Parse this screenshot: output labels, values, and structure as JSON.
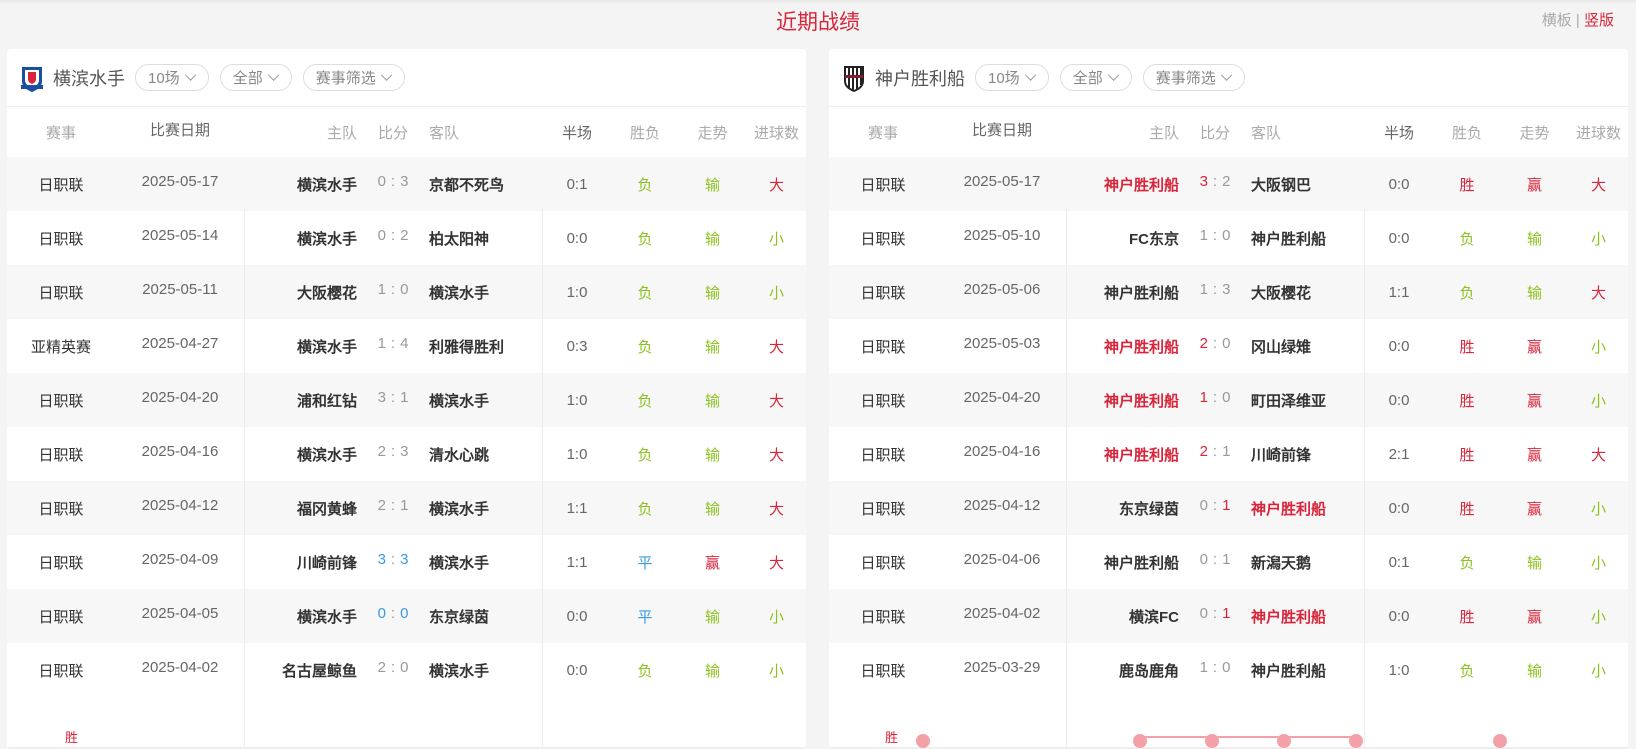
{
  "title": "近期战绩",
  "view_toggle": {
    "horizontal": "横板",
    "separator": "|",
    "vertical": "竖版"
  },
  "colors": {
    "accent": "#d9243a",
    "win": "#d9243a",
    "loss": "#8cc21f",
    "draw": "#3a9be0"
  },
  "columns": {
    "comp": "赛事",
    "date": "比赛日期",
    "home": "主队",
    "score": "比分",
    "away": "客队",
    "half": "半场",
    "res": "胜负",
    "trend": "走势",
    "ou": "进球数"
  },
  "panels": [
    {
      "team": "横滨水手",
      "logo": "yokohama-marinos-crest",
      "filters": [
        "10场",
        "全部",
        "赛事筛选"
      ],
      "chart_label": "胜",
      "rows": [
        {
          "comp": "日职联",
          "date": "2025-05-17",
          "home": "横滨水手",
          "hs": "0",
          "as": "3",
          "away": "京都不死鸟",
          "half": "0:1",
          "res": "负",
          "trend": "输",
          "ou": "大",
          "winner": "none"
        },
        {
          "comp": "日职联",
          "date": "2025-05-14",
          "home": "横滨水手",
          "hs": "0",
          "as": "2",
          "away": "柏太阳神",
          "half": "0:0",
          "res": "负",
          "trend": "输",
          "ou": "小",
          "winner": "none"
        },
        {
          "comp": "日职联",
          "date": "2025-05-11",
          "home": "大阪樱花",
          "hs": "1",
          "as": "0",
          "away": "横滨水手",
          "half": "1:0",
          "res": "负",
          "trend": "输",
          "ou": "小",
          "winner": "none"
        },
        {
          "comp": "亚精英赛",
          "date": "2025-04-27",
          "home": "横滨水手",
          "hs": "1",
          "as": "4",
          "away": "利雅得胜利",
          "half": "0:3",
          "res": "负",
          "trend": "输",
          "ou": "大",
          "winner": "none"
        },
        {
          "comp": "日职联",
          "date": "2025-04-20",
          "home": "浦和红钻",
          "hs": "3",
          "as": "1",
          "away": "横滨水手",
          "half": "1:0",
          "res": "负",
          "trend": "输",
          "ou": "大",
          "winner": "none"
        },
        {
          "comp": "日职联",
          "date": "2025-04-16",
          "home": "横滨水手",
          "hs": "2",
          "as": "3",
          "away": "清水心跳",
          "half": "1:0",
          "res": "负",
          "trend": "输",
          "ou": "大",
          "winner": "none"
        },
        {
          "comp": "日职联",
          "date": "2025-04-12",
          "home": "福冈黄蜂",
          "hs": "2",
          "as": "1",
          "away": "横滨水手",
          "half": "1:1",
          "res": "负",
          "trend": "输",
          "ou": "大",
          "winner": "none"
        },
        {
          "comp": "日职联",
          "date": "2025-04-09",
          "home": "川崎前锋",
          "hs": "3",
          "as": "3",
          "away": "横滨水手",
          "half": "1:1",
          "res": "平",
          "trend": "赢",
          "ou": "大",
          "winner": "draw"
        },
        {
          "comp": "日职联",
          "date": "2025-04-05",
          "home": "横滨水手",
          "hs": "0",
          "as": "0",
          "away": "东京绿茵",
          "half": "0:0",
          "res": "平",
          "trend": "输",
          "ou": "小",
          "winner": "draw"
        },
        {
          "comp": "日职联",
          "date": "2025-04-02",
          "home": "名古屋鲸鱼",
          "hs": "2",
          "as": "0",
          "away": "横滨水手",
          "half": "0:0",
          "res": "负",
          "trend": "输",
          "ou": "小",
          "winner": "none"
        }
      ]
    },
    {
      "team": "神户胜利船",
      "logo": "vissel-kobe-crest",
      "filters": [
        "10场",
        "全部",
        "赛事筛选"
      ],
      "chart_label": "胜",
      "rows": [
        {
          "comp": "日职联",
          "date": "2025-05-17",
          "home": "神户胜利船",
          "hs": "3",
          "as": "2",
          "away": "大阪钢巴",
          "half": "0:0",
          "res": "胜",
          "trend": "赢",
          "ou": "大",
          "winner": "home"
        },
        {
          "comp": "日职联",
          "date": "2025-05-10",
          "home": "FC东京",
          "hs": "1",
          "as": "0",
          "away": "神户胜利船",
          "half": "0:0",
          "res": "负",
          "trend": "输",
          "ou": "小",
          "winner": "none"
        },
        {
          "comp": "日职联",
          "date": "2025-05-06",
          "home": "神户胜利船",
          "hs": "1",
          "as": "3",
          "away": "大阪樱花",
          "half": "1:1",
          "res": "负",
          "trend": "输",
          "ou": "大",
          "winner": "none"
        },
        {
          "comp": "日职联",
          "date": "2025-05-03",
          "home": "神户胜利船",
          "hs": "2",
          "as": "0",
          "away": "冈山绿雉",
          "half": "0:0",
          "res": "胜",
          "trend": "赢",
          "ou": "小",
          "winner": "home"
        },
        {
          "comp": "日职联",
          "date": "2025-04-20",
          "home": "神户胜利船",
          "hs": "1",
          "as": "0",
          "away": "町田泽维亚",
          "half": "0:0",
          "res": "胜",
          "trend": "赢",
          "ou": "小",
          "winner": "home"
        },
        {
          "comp": "日职联",
          "date": "2025-04-16",
          "home": "神户胜利船",
          "hs": "2",
          "as": "1",
          "away": "川崎前锋",
          "half": "2:1",
          "res": "胜",
          "trend": "赢",
          "ou": "大",
          "winner": "home"
        },
        {
          "comp": "日职联",
          "date": "2025-04-12",
          "home": "东京绿茵",
          "hs": "0",
          "as": "1",
          "away": "神户胜利船",
          "half": "0:0",
          "res": "胜",
          "trend": "赢",
          "ou": "小",
          "winner": "away"
        },
        {
          "comp": "日职联",
          "date": "2025-04-06",
          "home": "神户胜利船",
          "hs": "0",
          "as": "1",
          "away": "新潟天鹅",
          "half": "0:1",
          "res": "负",
          "trend": "输",
          "ou": "小",
          "winner": "none"
        },
        {
          "comp": "日职联",
          "date": "2025-04-02",
          "home": "横滨FC",
          "hs": "0",
          "as": "1",
          "away": "神户胜利船",
          "half": "0:0",
          "res": "胜",
          "trend": "赢",
          "ou": "小",
          "winner": "away"
        },
        {
          "comp": "日职联",
          "date": "2025-03-29",
          "home": "鹿岛鹿角",
          "hs": "1",
          "as": "0",
          "away": "神户胜利船",
          "half": "1:0",
          "res": "负",
          "trend": "输",
          "ou": "小",
          "winner": "none"
        }
      ]
    }
  ]
}
